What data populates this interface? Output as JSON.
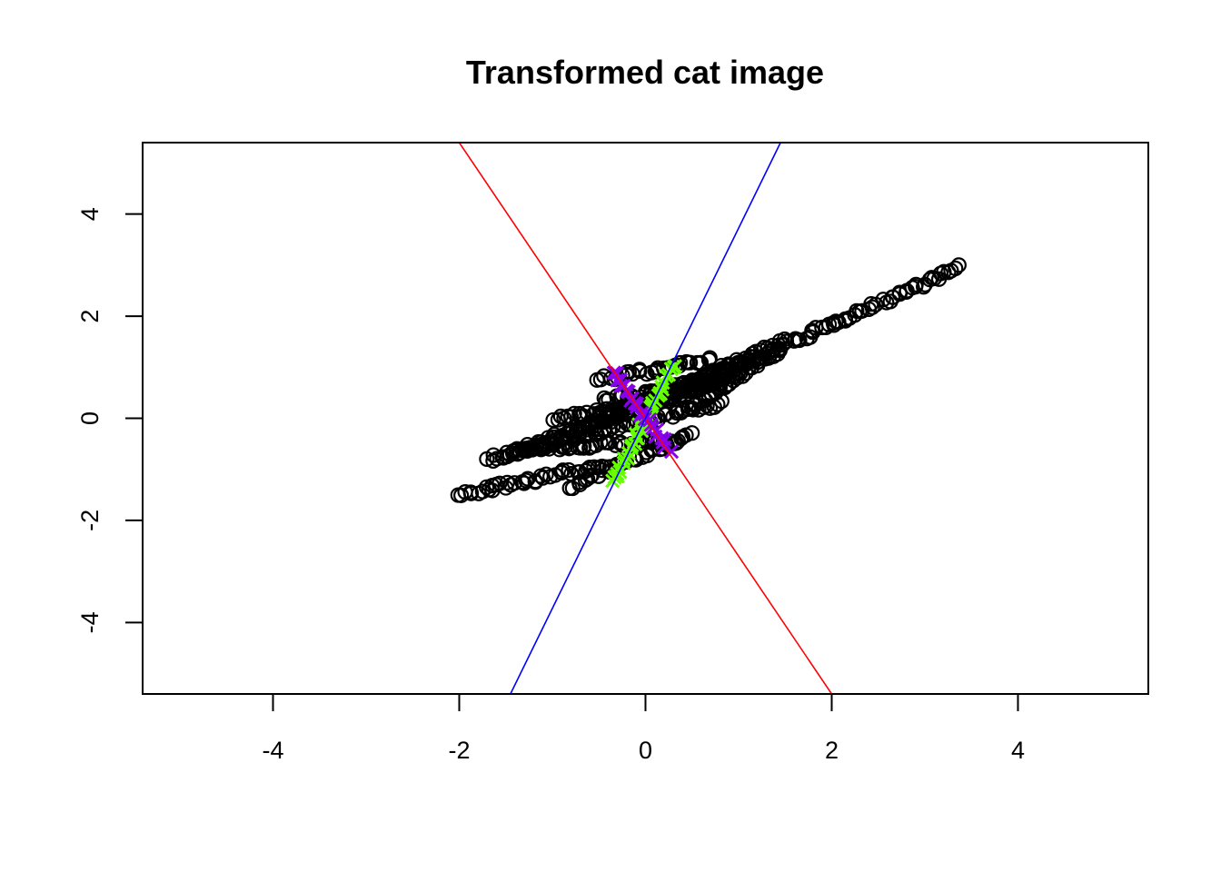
{
  "chart_data": {
    "type": "scatter",
    "title": "Transformed cat image",
    "xlabel": "",
    "ylabel": "",
    "xlim": [
      -5.4,
      5.4
    ],
    "ylim": [
      -5.4,
      5.4
    ],
    "x_ticks": [
      -4,
      -2,
      0,
      2,
      4
    ],
    "x_tick_labels": [
      "-4",
      "-2",
      "0",
      "2",
      "4"
    ],
    "y_ticks": [
      -4,
      -2,
      0,
      2,
      4
    ],
    "y_tick_labels": [
      "-4",
      "-2",
      "0",
      "2",
      "4"
    ],
    "grid": false,
    "legend": "none",
    "lines": [
      {
        "color": "#ff0000",
        "from": [
          -2.0,
          5.4
        ],
        "to": [
          2.0,
          -5.4
        ]
      },
      {
        "color": "#0000ff",
        "from": [
          -1.45,
          -5.4
        ],
        "to": [
          1.45,
          5.4
        ]
      }
    ],
    "series": [
      {
        "marker": "circle-open",
        "color": "#000000",
        "segments": [
          {
            "from": [
              0.0,
              0.2
            ],
            "to": [
              3.35,
              2.95
            ]
          },
          {
            "from": [
              -2.0,
              -1.5
            ],
            "to": [
              -0.4,
              -0.9
            ]
          },
          {
            "from": [
              -1.7,
              -0.8
            ],
            "to": [
              0.8,
              0.3
            ]
          },
          {
            "from": [
              -1.5,
              -0.75
            ],
            "to": [
              1.2,
              1.2
            ]
          },
          {
            "from": [
              -1.0,
              -0.45
            ],
            "to": [
              1.0,
              0.9
            ]
          },
          {
            "from": [
              -0.5,
              0.0
            ],
            "to": [
              1.5,
              1.5
            ]
          },
          {
            "from": [
              -0.8,
              -1.35
            ],
            "to": [
              0.5,
              -0.3
            ]
          },
          {
            "from": [
              -0.5,
              0.75
            ],
            "to": [
              0.7,
              1.15
            ]
          },
          {
            "from": [
              -0.45,
              0.35
            ],
            "to": [
              0.8,
              0.7
            ]
          },
          {
            "from": [
              -1.0,
              0.0
            ],
            "to": [
              0.0,
              0.25
            ]
          },
          {
            "from": [
              -1.3,
              -0.6
            ],
            "to": [
              0.3,
              -0.45
            ]
          },
          {
            "from": [
              0.5,
              0.2
            ],
            "to": [
              1.4,
              1.3
            ]
          }
        ]
      },
      {
        "marker": "x",
        "color": "#66ff00",
        "segments": [
          {
            "from": [
              -0.35,
              -1.25
            ],
            "to": [
              0.3,
              1.05
            ]
          }
        ]
      },
      {
        "marker": "x",
        "color": "#8800ee",
        "segments": [
          {
            "from": [
              -0.35,
              0.9
            ],
            "to": [
              0.25,
              -0.6
            ]
          }
        ]
      }
    ]
  }
}
